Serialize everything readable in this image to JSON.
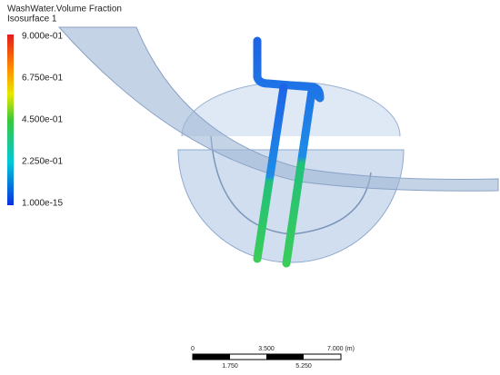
{
  "legend": {
    "title": "WashWater.Volume Fraction",
    "subtitle": "Isosurface 1",
    "labels": [
      "9.000e-01",
      "6.750e-01",
      "4.500e-01",
      "2.250e-01",
      "1.000e-15"
    ]
  },
  "scale_bar": {
    "top_labels": [
      "0",
      "3.500",
      "7.000 (m)"
    ],
    "bottom_labels": [
      "1.750",
      "5.250"
    ]
  }
}
